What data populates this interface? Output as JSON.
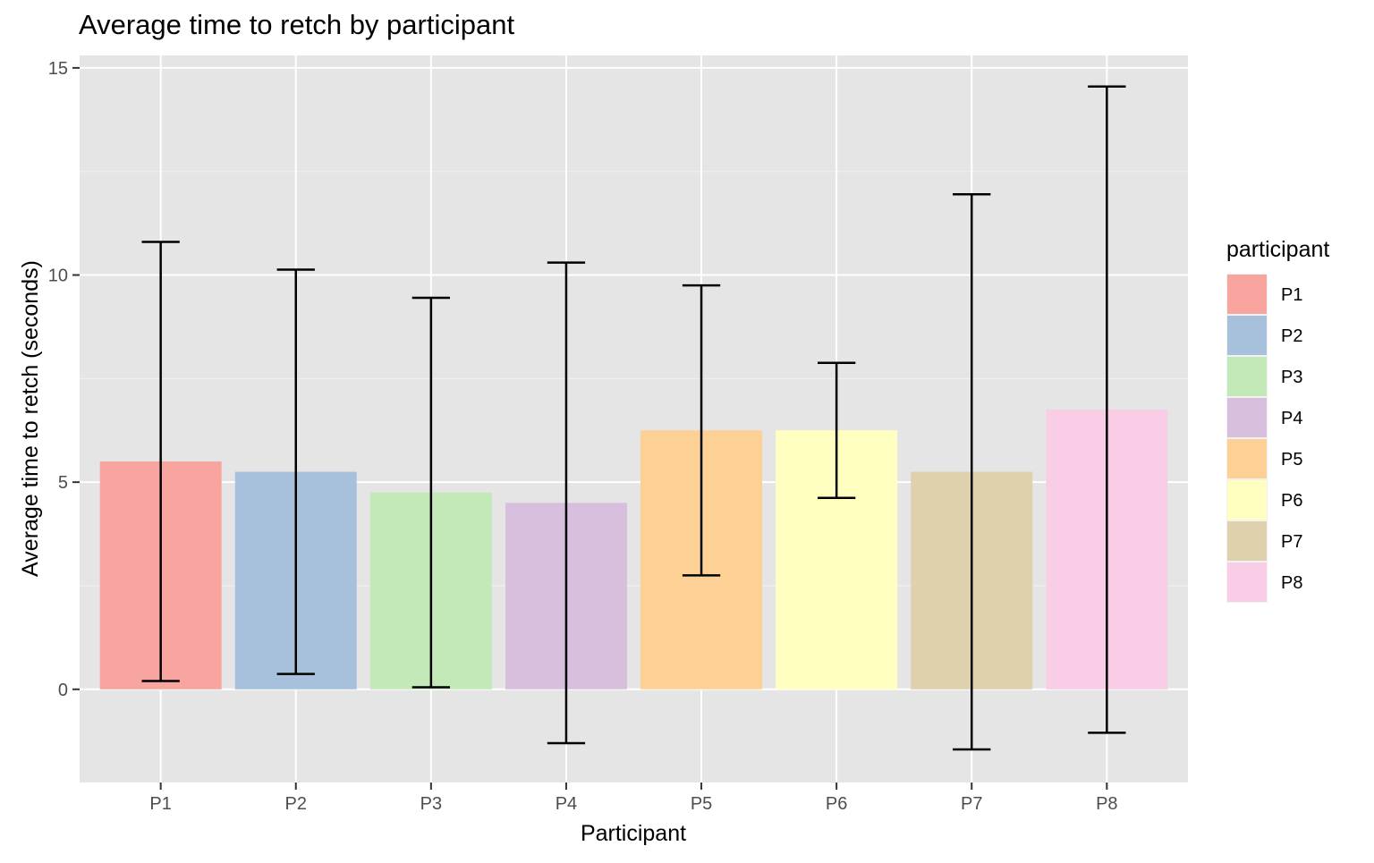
{
  "chart_data": {
    "type": "bar",
    "title": "Average time to retch by participant",
    "xlabel": "Participant",
    "ylabel": "Average time to retch (seconds)",
    "categories": [
      "P1",
      "P2",
      "P3",
      "P4",
      "P5",
      "P6",
      "P7",
      "P8"
    ],
    "values": [
      5.5,
      5.25,
      4.75,
      4.5,
      6.25,
      6.25,
      5.25,
      6.75
    ],
    "error_low": [
      0.2,
      0.37,
      0.05,
      -1.3,
      2.75,
      4.62,
      -1.45,
      -1.05
    ],
    "error_high": [
      10.8,
      10.13,
      9.45,
      10.3,
      9.75,
      7.88,
      11.95,
      14.55
    ],
    "ylim": [
      -2.25,
      15.3
    ],
    "yticks": [
      0,
      5,
      10,
      15
    ],
    "ytick_labels": [
      "0",
      "5",
      "10",
      "15"
    ],
    "grid": true,
    "legend": {
      "title": "participant",
      "position": "right",
      "entries": [
        "P1",
        "P2",
        "P3",
        "P4",
        "P5",
        "P6",
        "P7",
        "P8"
      ]
    },
    "colors": [
      "#f8a5a0",
      "#a7c1dc",
      "#c4e9b9",
      "#d7bfdd",
      "#fdd195",
      "#ffffc2",
      "#dfd0ae",
      "#f9cde5"
    ],
    "panel_background": "#e5e5e5"
  }
}
